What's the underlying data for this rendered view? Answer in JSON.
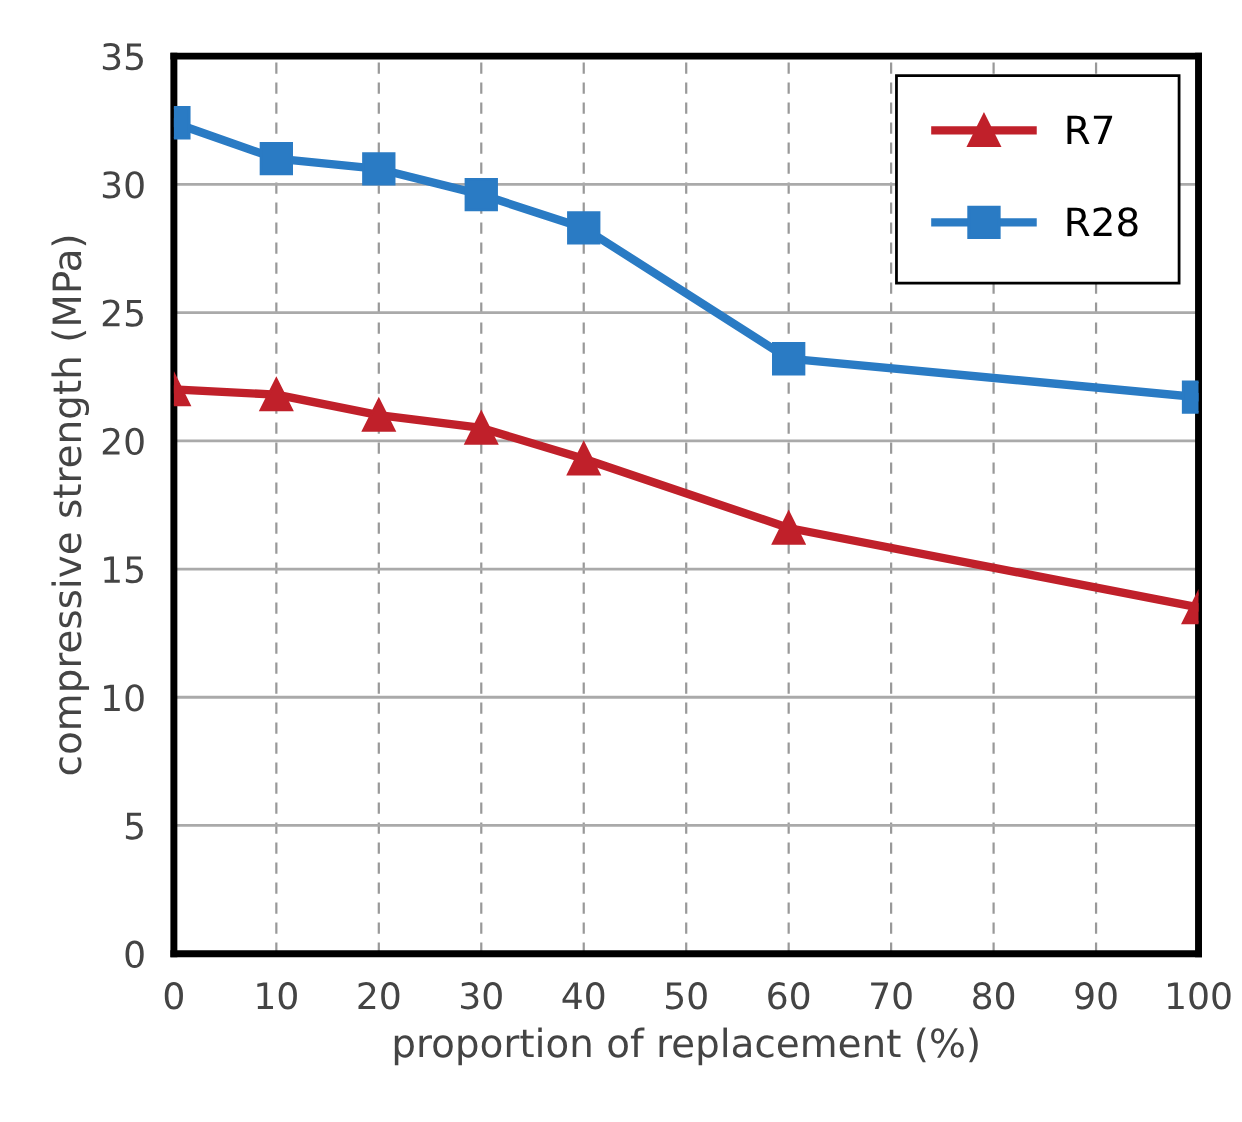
{
  "chart_data": {
    "type": "line",
    "xlabel": "proportion of replacement (%)",
    "ylabel": "compressive strength (MPa)",
    "x": [
      0,
      10,
      20,
      30,
      40,
      60,
      100
    ],
    "series": [
      {
        "name": "R7",
        "color": "#c0202a",
        "marker": "triangle",
        "values": [
          22.0,
          21.8,
          21.0,
          20.5,
          19.3,
          16.6,
          13.5
        ]
      },
      {
        "name": "R28",
        "color": "#2a7bc4",
        "marker": "square",
        "values": [
          32.4,
          31.0,
          30.6,
          29.6,
          28.3,
          23.2,
          21.7
        ]
      }
    ],
    "xlim": [
      0,
      100
    ],
    "xticks": [
      0,
      10,
      20,
      30,
      40,
      50,
      60,
      70,
      80,
      90,
      100
    ],
    "ylim": [
      0,
      35
    ],
    "yticks": [
      0,
      5,
      10,
      15,
      20,
      25,
      30,
      35
    ],
    "grid": true,
    "legend": "top right",
    "line_style": "solid"
  }
}
